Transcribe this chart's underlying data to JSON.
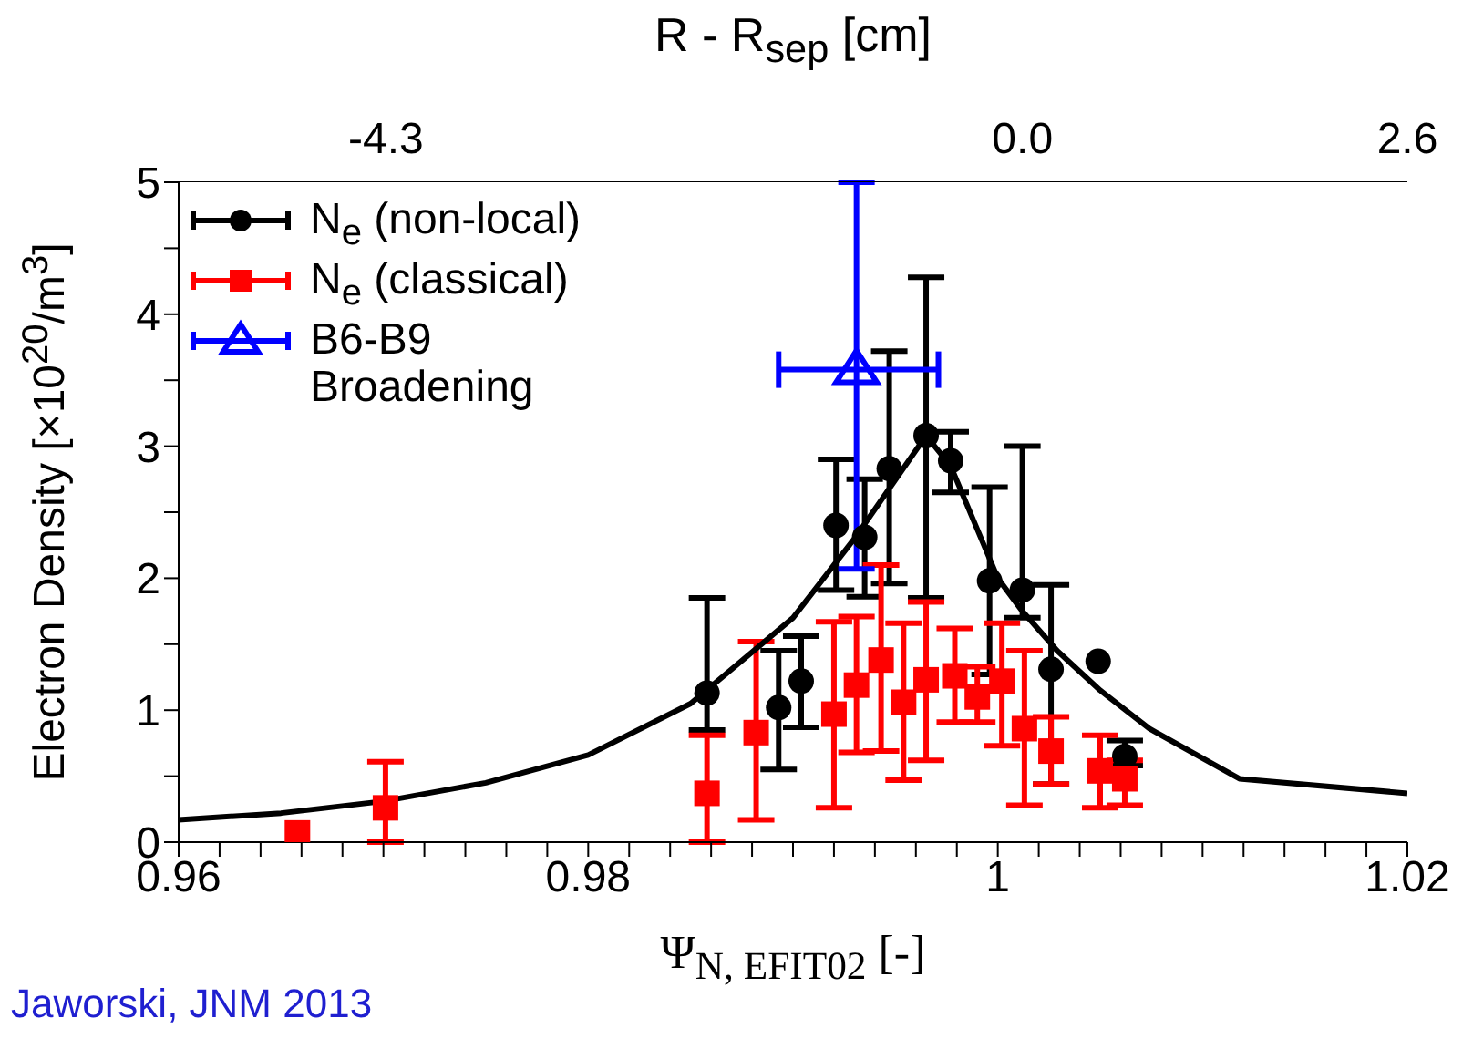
{
  "chart_data": {
    "type": "scatter",
    "xlabel": "Ψ$_{N, EFIT02}$ [-]",
    "ylabel": "Electron Density [×10$^{20}$/m$^{3}$]",
    "x2label": "R - R$_{sep}$ [cm]",
    "xlim": [
      0.96,
      1.02
    ],
    "xticks": [
      0.96,
      {
        "value": 0.962,
        "label": null
      },
      {
        "value": 0.964,
        "label": null
      },
      {
        "value": 0.966,
        "label": null
      },
      {
        "value": 0.968,
        "label": null
      },
      {
        "value": 0.97,
        "label": null
      },
      {
        "value": 0.972,
        "label": null
      },
      {
        "value": 0.974,
        "label": null
      },
      {
        "value": 0.976,
        "label": null
      },
      {
        "value": 0.978,
        "label": null
      },
      0.98,
      {
        "value": 0.982,
        "label": null
      },
      {
        "value": 0.984,
        "label": null
      },
      {
        "value": 0.986,
        "label": null
      },
      {
        "value": 0.988,
        "label": null
      },
      {
        "value": 0.99,
        "label": null
      },
      {
        "value": 0.992,
        "label": null
      },
      {
        "value": 0.994,
        "label": null
      },
      {
        "value": 0.996,
        "label": null
      },
      {
        "value": 0.998,
        "label": null
      },
      1,
      {
        "value": 1.002,
        "label": null
      },
      {
        "value": 1.004,
        "label": null
      },
      {
        "value": 1.006,
        "label": null
      },
      {
        "value": 1.008,
        "label": null
      },
      {
        "value": 1.01,
        "label": null
      },
      {
        "value": 1.012,
        "label": null
      },
      {
        "value": 1.014,
        "label": null
      },
      {
        "value": 1.016,
        "label": null
      },
      {
        "value": 1.018,
        "label": null
      },
      1.02
    ],
    "ylim": [
      0,
      5
    ],
    "yticks": [
      0,
      {
        "value": 0.5,
        "label": null
      },
      1,
      {
        "value": 1.5,
        "label": null
      },
      2,
      {
        "value": 2.5,
        "label": null
      },
      3,
      {
        "value": 3.5,
        "label": null
      },
      4,
      {
        "value": 4.5,
        "label": null
      },
      5
    ],
    "x2lim": [
      -5.7,
      2.6
    ],
    "x2ticks": [
      -4.3,
      {
        "value": 0,
        "label": "0.0"
      },
      2.6
    ],
    "legend": "top left",
    "annotations": [
      "Jaworski, JNM 2013"
    ],
    "series": [
      {
        "type": "line",
        "marker": "none",
        "color": "#000000",
        "x": [
          0.96,
          0.965,
          0.97,
          0.975,
          0.98,
          0.985,
          0.99,
          0.993,
          0.9965,
          0.9977,
          1.0,
          1.0012,
          1.0029,
          1.005,
          1.0074,
          1.0118,
          1.02
        ],
        "values": [
          0.17,
          0.22,
          0.31,
          0.45,
          0.66,
          1.05,
          1.7,
          2.3,
          3.08,
          2.85,
          2.0,
          1.75,
          1.45,
          1.15,
          0.86,
          0.48,
          0.37
        ]
      },
      {
        "name": "N$_{e}$ (non-local)",
        "marker": "circle",
        "color": "#000000",
        "x": [
          0.9858,
          0.9893,
          0.9904,
          0.9921,
          0.9935,
          0.9947,
          0.9965,
          0.9977,
          0.9996,
          1.0012,
          1.0026,
          1.0049,
          1.0062
        ],
        "values": [
          1.13,
          1.02,
          1.22,
          2.4,
          2.31,
          2.83,
          3.08,
          2.89,
          1.98,
          1.91,
          1.31,
          1.37,
          0.65
        ],
        "errors": [
          [
            0.85,
            1.85
          ],
          [
            0.55,
            1.45
          ],
          [
            0.87,
            1.56
          ],
          [
            1.91,
            2.9
          ],
          [
            1.86,
            2.75
          ],
          [
            1.96,
            3.72
          ],
          [
            1.85,
            4.28
          ],
          [
            2.65,
            3.11
          ],
          [
            1.27,
            2.69
          ],
          [
            1.7,
            3.0
          ],
          [
            0.44,
            1.95
          ],
          null,
          [
            0.58,
            0.77
          ]
        ]
      },
      {
        "name": "N$_{e}$ (classical)",
        "marker": "square",
        "color": "#ff0000",
        "x": [
          0.9658,
          0.9701,
          0.9858,
          0.9882,
          0.992,
          0.9931,
          0.9943,
          0.9954,
          0.9965,
          0.9979,
          0.999,
          1.0002,
          1.0013,
          1.0026,
          1.005,
          1.0062
        ],
        "values": [
          0.07,
          0.26,
          0.37,
          0.83,
          0.97,
          1.19,
          1.38,
          1.06,
          1.23,
          1.26,
          1.1,
          1.22,
          0.86,
          0.69,
          0.54,
          0.48
        ],
        "errors": [
          null,
          [
            0,
            0.61
          ],
          [
            0,
            0.81
          ],
          [
            0.17,
            1.52
          ],
          [
            0.26,
            1.67
          ],
          [
            0.68,
            1.71
          ],
          [
            0.69,
            2.1
          ],
          [
            0.47,
            1.66
          ],
          [
            0.62,
            1.82
          ],
          [
            0.91,
            1.62
          ],
          [
            0.91,
            1.33
          ],
          [
            0.73,
            1.66
          ],
          [
            0.28,
            1.45
          ],
          [
            0.44,
            0.95
          ],
          [
            0.26,
            0.81
          ],
          [
            0.28,
            0.62
          ]
        ]
      },
      {
        "name": "B6-B9 Broadening",
        "marker": "triangle",
        "color": "#0000ff",
        "x": [
          0.9931
        ],
        "values": [
          3.58
        ],
        "errors": [
          [
            2.07,
            5.0
          ]
        ],
        "xerrors": [
          [
            0.9893,
            0.9971
          ]
        ]
      }
    ]
  }
}
